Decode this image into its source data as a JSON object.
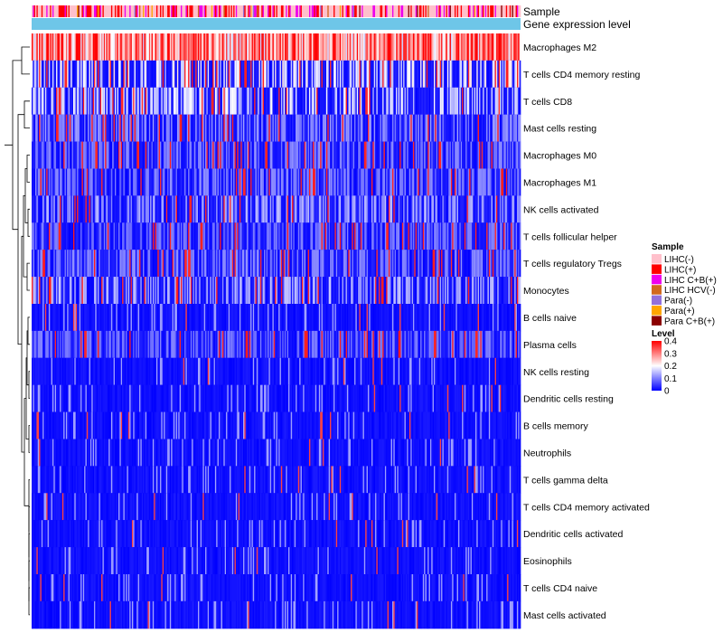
{
  "chart_data": {
    "type": "heatmap",
    "title": "",
    "annotation_tracks": [
      "Sample",
      "Gene expression level"
    ],
    "rows": [
      {
        "label": "Macrophages M2",
        "mean": 0.3
      },
      {
        "label": "T cells CD4 memory resting",
        "mean": 0.17
      },
      {
        "label": "T cells CD8",
        "mean": 0.15
      },
      {
        "label": "Mast cells resting",
        "mean": 0.08
      },
      {
        "label": "Macrophages M0",
        "mean": 0.07
      },
      {
        "label": "Macrophages M1",
        "mean": 0.07
      },
      {
        "label": "NK cells activated",
        "mean": 0.1
      },
      {
        "label": "T cells follicular helper",
        "mean": 0.06
      },
      {
        "label": "T cells regulatory  Tregs",
        "mean": 0.07
      },
      {
        "label": "Monocytes",
        "mean": 0.11
      },
      {
        "label": "B cells naive",
        "mean": 0.04
      },
      {
        "label": "Plasma cells",
        "mean": 0.06
      },
      {
        "label": "NK cells resting",
        "mean": 0.02
      },
      {
        "label": "Dendritic cells resting",
        "mean": 0.03
      },
      {
        "label": "B cells memory",
        "mean": 0.03
      },
      {
        "label": "Neutrophils",
        "mean": 0.02
      },
      {
        "label": "T cells gamma delta",
        "mean": 0.01
      },
      {
        "label": "T cells CD4 memory activated",
        "mean": 0.01
      },
      {
        "label": "Dendritic cells activated",
        "mean": 0.01
      },
      {
        "label": "Eosinophils",
        "mean": 0.01
      },
      {
        "label": "T cells CD4 naive",
        "mean": 0.01
      },
      {
        "label": "Mast cells activated",
        "mean": 0.02
      }
    ],
    "n_samples": 400,
    "sample_legend": {
      "title": "Sample",
      "entries": [
        {
          "label": "LIHC(-)",
          "color": "#ffc0cb"
        },
        {
          "label": "LIHC(+)",
          "color": "#ff0000"
        },
        {
          "label": "LIHC C+B(+)",
          "color": "#ee00ee"
        },
        {
          "label": "LIHC HCV(-)",
          "color": "#d2691e"
        },
        {
          "label": "Para(-)",
          "color": "#9370db"
        },
        {
          "label": "Para(+)",
          "color": "#ffa500"
        },
        {
          "label": "Para C+B(+)",
          "color": "#8b0000"
        }
      ]
    },
    "sample_mix": [
      0.55,
      0.22,
      0.16,
      0.02,
      0.02,
      0.02,
      0.01
    ],
    "expression_track_color": "#6ec6e8",
    "level_legend": {
      "title": "Level",
      "ticks": [
        "0.4",
        "0.3",
        "0.2",
        "0.1",
        "0"
      ],
      "tick_values": [
        0.4,
        0.3,
        0.2,
        0.1,
        0
      ],
      "range": [
        0,
        0.4
      ],
      "colors": [
        "#0000ff",
        "#ffffff",
        "#ff0000"
      ]
    }
  }
}
